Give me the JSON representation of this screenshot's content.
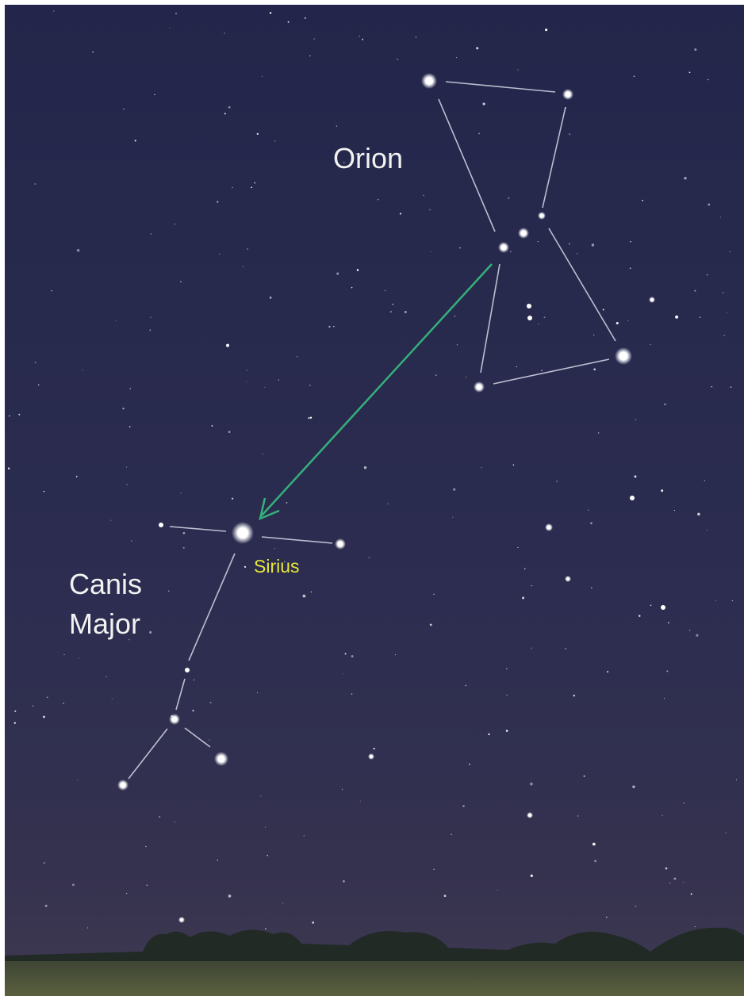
{
  "labels": {
    "orion": "Orion",
    "canis_major": [
      "Canis",
      "Major"
    ],
    "sirius": "Sirius"
  }
}
